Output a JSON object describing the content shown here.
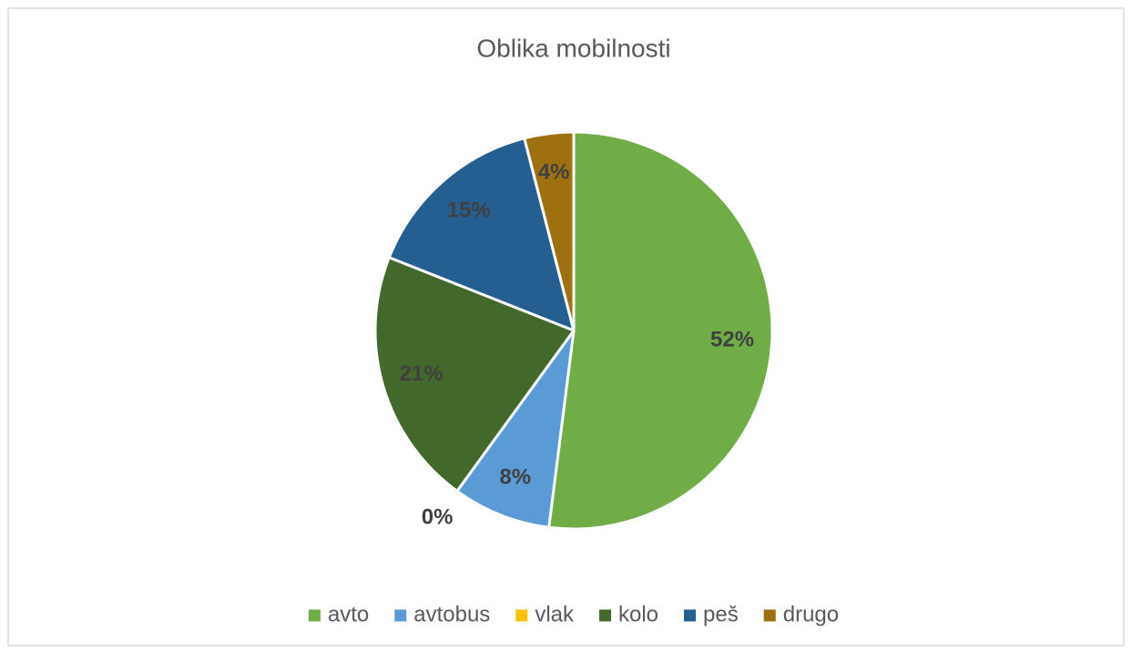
{
  "chart_data": {
    "type": "pie",
    "title": "Oblika mobilnosti",
    "categories": [
      "avto",
      "avtobus",
      "vlak",
      "kolo",
      "peš",
      "drugo"
    ],
    "values": [
      52,
      8,
      0,
      21,
      15,
      4
    ],
    "value_labels": [
      "52%",
      "8%",
      "0%",
      "21%",
      "15%",
      "4%"
    ],
    "colors": [
      "#70ad47",
      "#5b9bd5",
      "#ffc000",
      "#43682b",
      "#255e91",
      "#9e7010"
    ],
    "legend": "bottom"
  }
}
